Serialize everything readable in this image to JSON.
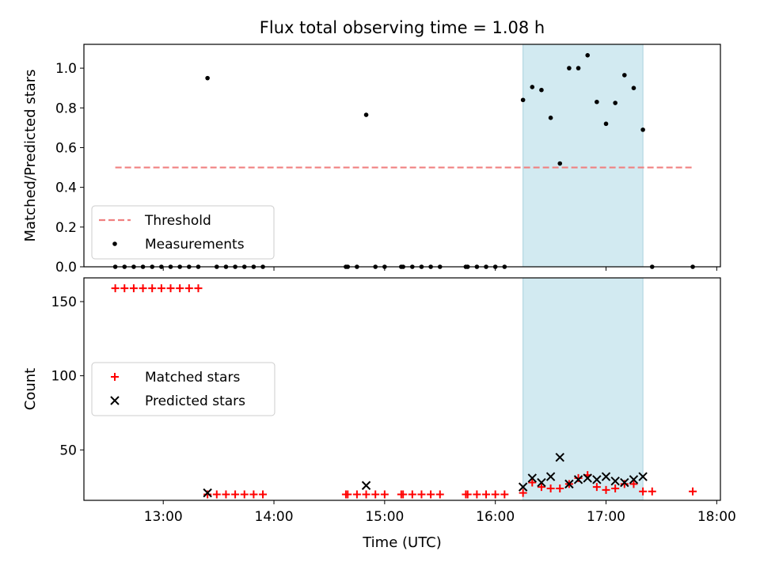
{
  "title": "Flux total observing time = 1.08 h",
  "xlabel": "Time (UTC)",
  "xticks": [
    "13:00",
    "14:00",
    "15:00",
    "16:00",
    "17:00",
    "18:00"
  ],
  "highlight_color": "#add8e6",
  "chart_data": [
    {
      "type": "scatter",
      "ylabel": "Matched/Predicted stars",
      "xlim": [
        "12:17",
        "18:02"
      ],
      "ylim": [
        0,
        1.12
      ],
      "yticks": [
        "0.0",
        "0.2",
        "0.4",
        "0.6",
        "0.8",
        "1.0"
      ],
      "highlight_span": [
        "16:15",
        "17:20"
      ],
      "legend": {
        "placement": "lower-left",
        "entries": [
          "Threshold",
          "Measurements"
        ]
      },
      "threshold": {
        "name": "Threshold",
        "y": 0.5,
        "x": [
          "12:34",
          "17:47"
        ],
        "color": "#f08080",
        "style": "dashed"
      },
      "series": [
        {
          "name": "Measurements",
          "color": "#000000",
          "points": [
            [
              "12:34",
              0
            ],
            [
              "12:39",
              0
            ],
            [
              "12:44",
              0
            ],
            [
              "12:49",
              0
            ],
            [
              "12:54",
              0
            ],
            [
              "12:59",
              0
            ],
            [
              "13:04",
              0
            ],
            [
              "13:09",
              0
            ],
            [
              "13:14",
              0
            ],
            [
              "13:19",
              0
            ],
            [
              "13:24",
              0.95
            ],
            [
              "13:29",
              0
            ],
            [
              "13:34",
              0
            ],
            [
              "13:39",
              0
            ],
            [
              "13:44",
              0
            ],
            [
              "13:49",
              0
            ],
            [
              "13:54",
              0
            ],
            [
              "14:39",
              0
            ],
            [
              "14:40",
              0
            ],
            [
              "14:45",
              0
            ],
            [
              "14:50",
              0.765
            ],
            [
              "14:55",
              0
            ],
            [
              "15:00",
              0
            ],
            [
              "15:09",
              0
            ],
            [
              "15:10",
              0
            ],
            [
              "15:15",
              0
            ],
            [
              "15:20",
              0
            ],
            [
              "15:25",
              0
            ],
            [
              "15:30",
              0
            ],
            [
              "15:44",
              0
            ],
            [
              "15:45",
              0
            ],
            [
              "15:50",
              0
            ],
            [
              "15:55",
              0
            ],
            [
              "16:00",
              0
            ],
            [
              "16:05",
              0
            ],
            [
              "16:15",
              0.84
            ],
            [
              "16:20",
              0.905
            ],
            [
              "16:25",
              0.89
            ],
            [
              "16:30",
              0.75
            ],
            [
              "16:35",
              0.52
            ],
            [
              "16:40",
              1.0
            ],
            [
              "16:45",
              1.0
            ],
            [
              "16:50",
              1.065
            ],
            [
              "16:55",
              0.83
            ],
            [
              "17:00",
              0.72
            ],
            [
              "17:05",
              0.825
            ],
            [
              "17:10",
              0.965
            ],
            [
              "17:15",
              0.9
            ],
            [
              "17:20",
              0.69
            ],
            [
              "17:25",
              0
            ],
            [
              "17:47",
              0
            ]
          ]
        }
      ]
    },
    {
      "type": "scatter",
      "ylabel": "Count",
      "xlim": [
        "12:17",
        "18:02"
      ],
      "ylim": [
        16,
        166
      ],
      "yticks": [
        "50",
        "100",
        "150"
      ],
      "highlight_span": [
        "16:15",
        "17:20"
      ],
      "legend": {
        "placement": "center-left",
        "entries": [
          "Matched stars",
          "Predicted stars"
        ]
      },
      "series": [
        {
          "name": "Matched stars",
          "marker": "plus",
          "color": "#ff0000",
          "points": [
            [
              "12:34",
              159
            ],
            [
              "12:39",
              159
            ],
            [
              "12:44",
              159
            ],
            [
              "12:49",
              159
            ],
            [
              "12:54",
              159
            ],
            [
              "12:59",
              159
            ],
            [
              "13:04",
              159
            ],
            [
              "13:09",
              159
            ],
            [
              "13:14",
              159
            ],
            [
              "13:19",
              159
            ],
            [
              "13:24",
              20
            ],
            [
              "13:29",
              20
            ],
            [
              "13:34",
              20
            ],
            [
              "13:39",
              20
            ],
            [
              "13:44",
              20
            ],
            [
              "13:49",
              20
            ],
            [
              "13:54",
              20
            ],
            [
              "14:39",
              20
            ],
            [
              "14:40",
              20
            ],
            [
              "14:45",
              20
            ],
            [
              "14:50",
              20
            ],
            [
              "14:55",
              20
            ],
            [
              "15:00",
              20
            ],
            [
              "15:09",
              20
            ],
            [
              "15:10",
              20
            ],
            [
              "15:15",
              20
            ],
            [
              "15:20",
              20
            ],
            [
              "15:25",
              20
            ],
            [
              "15:30",
              20
            ],
            [
              "15:44",
              20
            ],
            [
              "15:45",
              20
            ],
            [
              "15:50",
              20
            ],
            [
              "15:55",
              20
            ],
            [
              "16:00",
              20
            ],
            [
              "16:05",
              20
            ],
            [
              "16:15",
              21
            ],
            [
              "16:20",
              28
            ],
            [
              "16:25",
              25
            ],
            [
              "16:30",
              24
            ],
            [
              "16:35",
              24
            ],
            [
              "16:40",
              27
            ],
            [
              "16:45",
              31
            ],
            [
              "16:50",
              33
            ],
            [
              "16:55",
              25
            ],
            [
              "17:00",
              23
            ],
            [
              "17:05",
              24
            ],
            [
              "17:10",
              27
            ],
            [
              "17:15",
              27
            ],
            [
              "17:20",
              22
            ],
            [
              "17:25",
              22
            ],
            [
              "17:47",
              22
            ]
          ]
        },
        {
          "name": "Predicted stars",
          "marker": "x",
          "color": "#000000",
          "points": [
            [
              "13:24",
              21
            ],
            [
              "14:50",
              26
            ],
            [
              "16:15",
              25
            ],
            [
              "16:20",
              31
            ],
            [
              "16:25",
              28
            ],
            [
              "16:30",
              32
            ],
            [
              "16:35",
              45
            ],
            [
              "16:40",
              27
            ],
            [
              "16:45",
              30
            ],
            [
              "16:50",
              31
            ],
            [
              "16:55",
              30
            ],
            [
              "17:00",
              32
            ],
            [
              "17:05",
              29
            ],
            [
              "17:10",
              28
            ],
            [
              "17:15",
              30
            ],
            [
              "17:20",
              32
            ]
          ]
        }
      ]
    }
  ]
}
